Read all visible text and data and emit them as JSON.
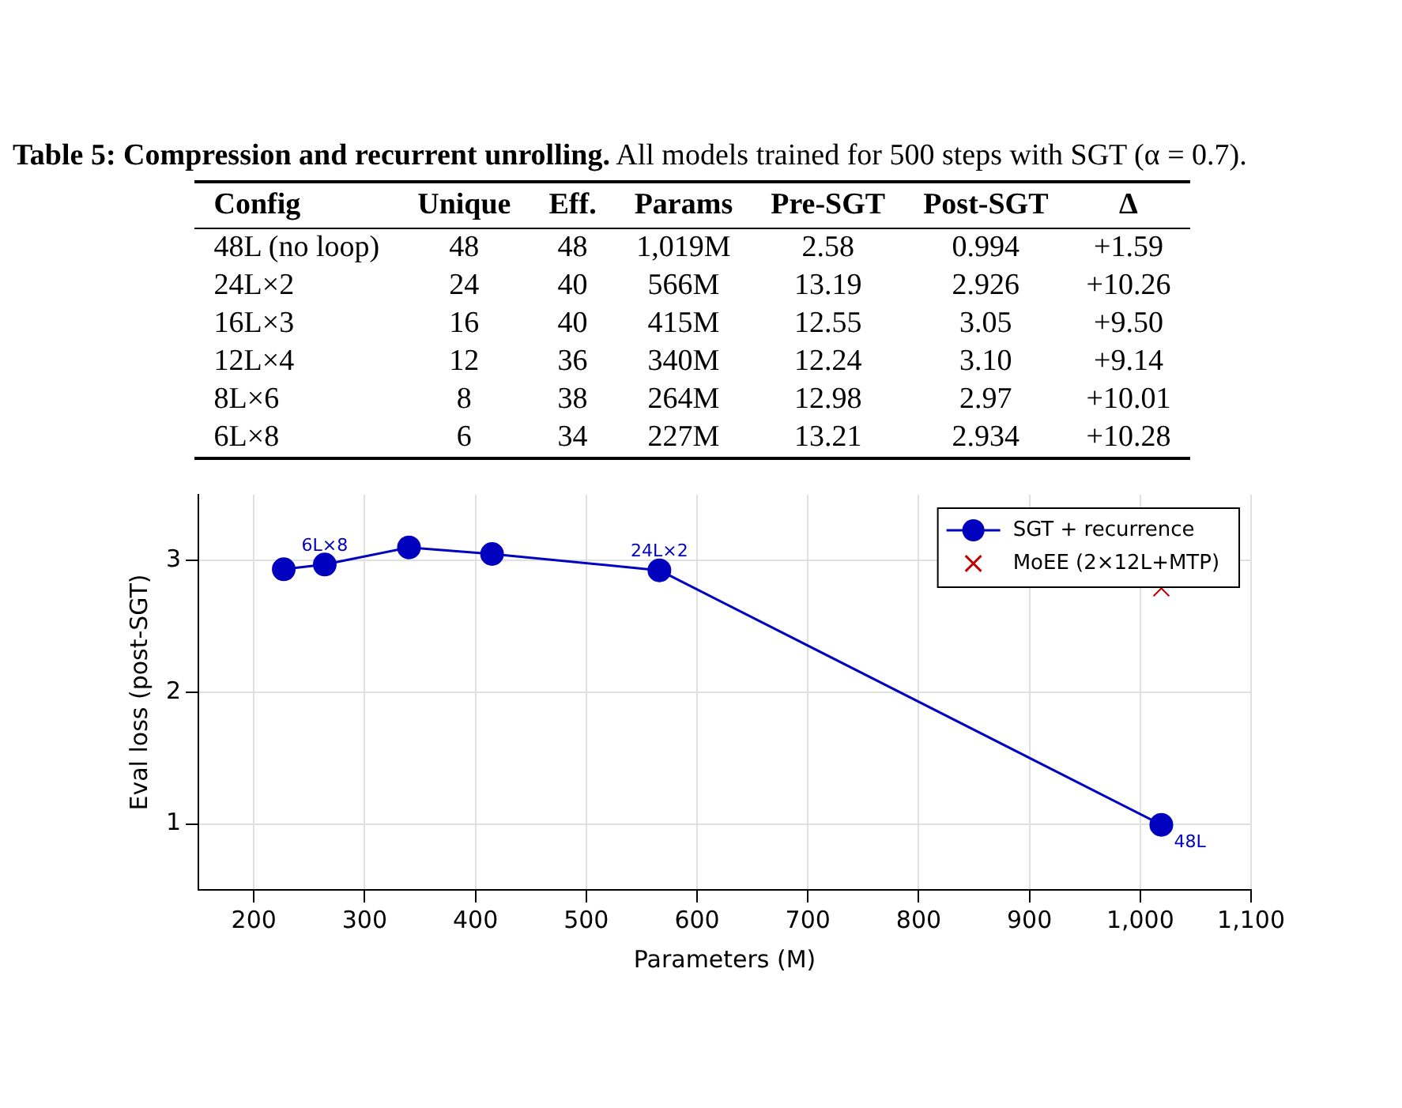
{
  "chart_data": [
    {
      "type": "other",
      "title": "Table 5: Compression and recurrent unrolling.",
      "subtitle": "All models trained for 500 steps with SGT (α = 0.7).",
      "categories": [
        "Config",
        "Unique",
        "Eff.",
        "Params",
        "Pre-SGT",
        "Post-SGT",
        "Δ"
      ],
      "cell_labels": [
        [
          "48L (no loop)",
          "48",
          "48",
          "1,019M",
          "2.58",
          "0.994",
          "+1.59"
        ],
        [
          "24L×2",
          "24",
          "40",
          "566M",
          "13.19",
          "2.926",
          "+10.26"
        ],
        [
          "16L×3",
          "16",
          "40",
          "415M",
          "12.55",
          "3.05",
          "+9.50"
        ],
        [
          "12L×4",
          "12",
          "36",
          "340M",
          "12.24",
          "3.10",
          "+9.14"
        ],
        [
          "8L×6",
          "8",
          "38",
          "264M",
          "12.98",
          "2.97",
          "+10.01"
        ],
        [
          "6L×8",
          "6",
          "34",
          "227M",
          "13.21",
          "2.934",
          "+10.28"
        ]
      ]
    },
    {
      "type": "line",
      "xlabel": "Parameters (M)",
      "ylabel": "Eval loss (post-SGT)",
      "series": [
        {
          "name": "SGT + recurrence",
          "color": "#0000bf",
          "x": [
            227,
            264,
            340,
            415,
            566,
            1019
          ],
          "values": [
            2.934,
            2.97,
            3.1,
            3.05,
            2.926,
            0.994
          ],
          "marker": "circle"
        },
        {
          "name": "MoEE (2×12L+MTP)",
          "type": "scatter",
          "color": "#bf0000",
          "x": [
            1019
          ],
          "values": [
            2.79
          ],
          "marker": "cross"
        }
      ],
      "xlim": [
        150,
        1100
      ],
      "xticks": [
        200,
        300,
        400,
        500,
        600,
        700,
        800,
        900,
        {
          "value": 1000,
          "label": "1,000"
        },
        {
          "value": 1100,
          "label": "1,100"
        }
      ],
      "ylim": [
        0.5,
        3.5
      ],
      "yticks": [
        1,
        2,
        3
      ],
      "grid": true,
      "legend": "top right",
      "annotations": [
        {
          "text": "6L×8",
          "x": 264,
          "y": 2.97
        },
        {
          "text": "24L×2",
          "x": 566,
          "y": 2.926
        },
        {
          "text": "48L",
          "x": 1019,
          "y": 0.994
        }
      ]
    }
  ]
}
